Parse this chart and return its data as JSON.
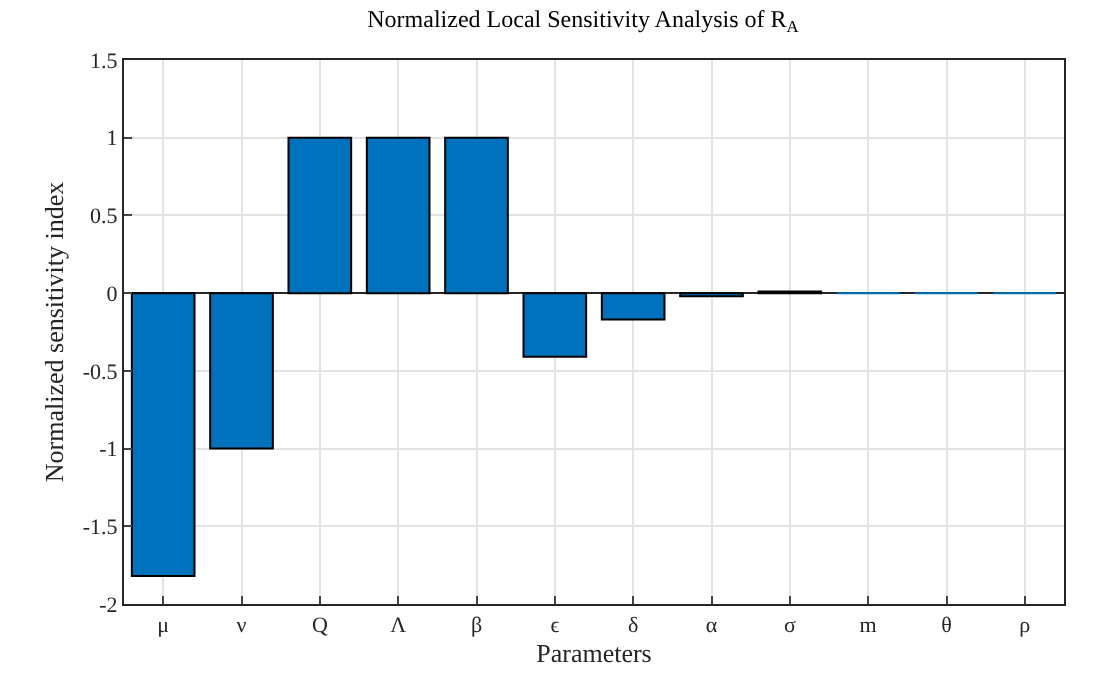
{
  "chart_data": {
    "type": "bar",
    "title": "Normalized Local Sensitivity Analysis of R$_{A}$",
    "xlabel": "Parameters",
    "ylabel": "Normalized sensitivity index",
    "categories": [
      "μ",
      "ν",
      "Q",
      "Λ",
      "β",
      "ϵ",
      "δ",
      "α",
      "σ",
      "m",
      "θ",
      "ρ"
    ],
    "values": [
      -1.82,
      -1.0,
      1.0,
      1.0,
      1.0,
      -0.41,
      -0.17,
      -0.02,
      0.01,
      0,
      0,
      0
    ],
    "color": "#0072bd",
    "ylim": [
      -2,
      1.5
    ],
    "yticks": [
      -2,
      -1.5,
      -1,
      -0.5,
      0,
      0.5,
      1,
      1.5
    ],
    "grid": true
  }
}
